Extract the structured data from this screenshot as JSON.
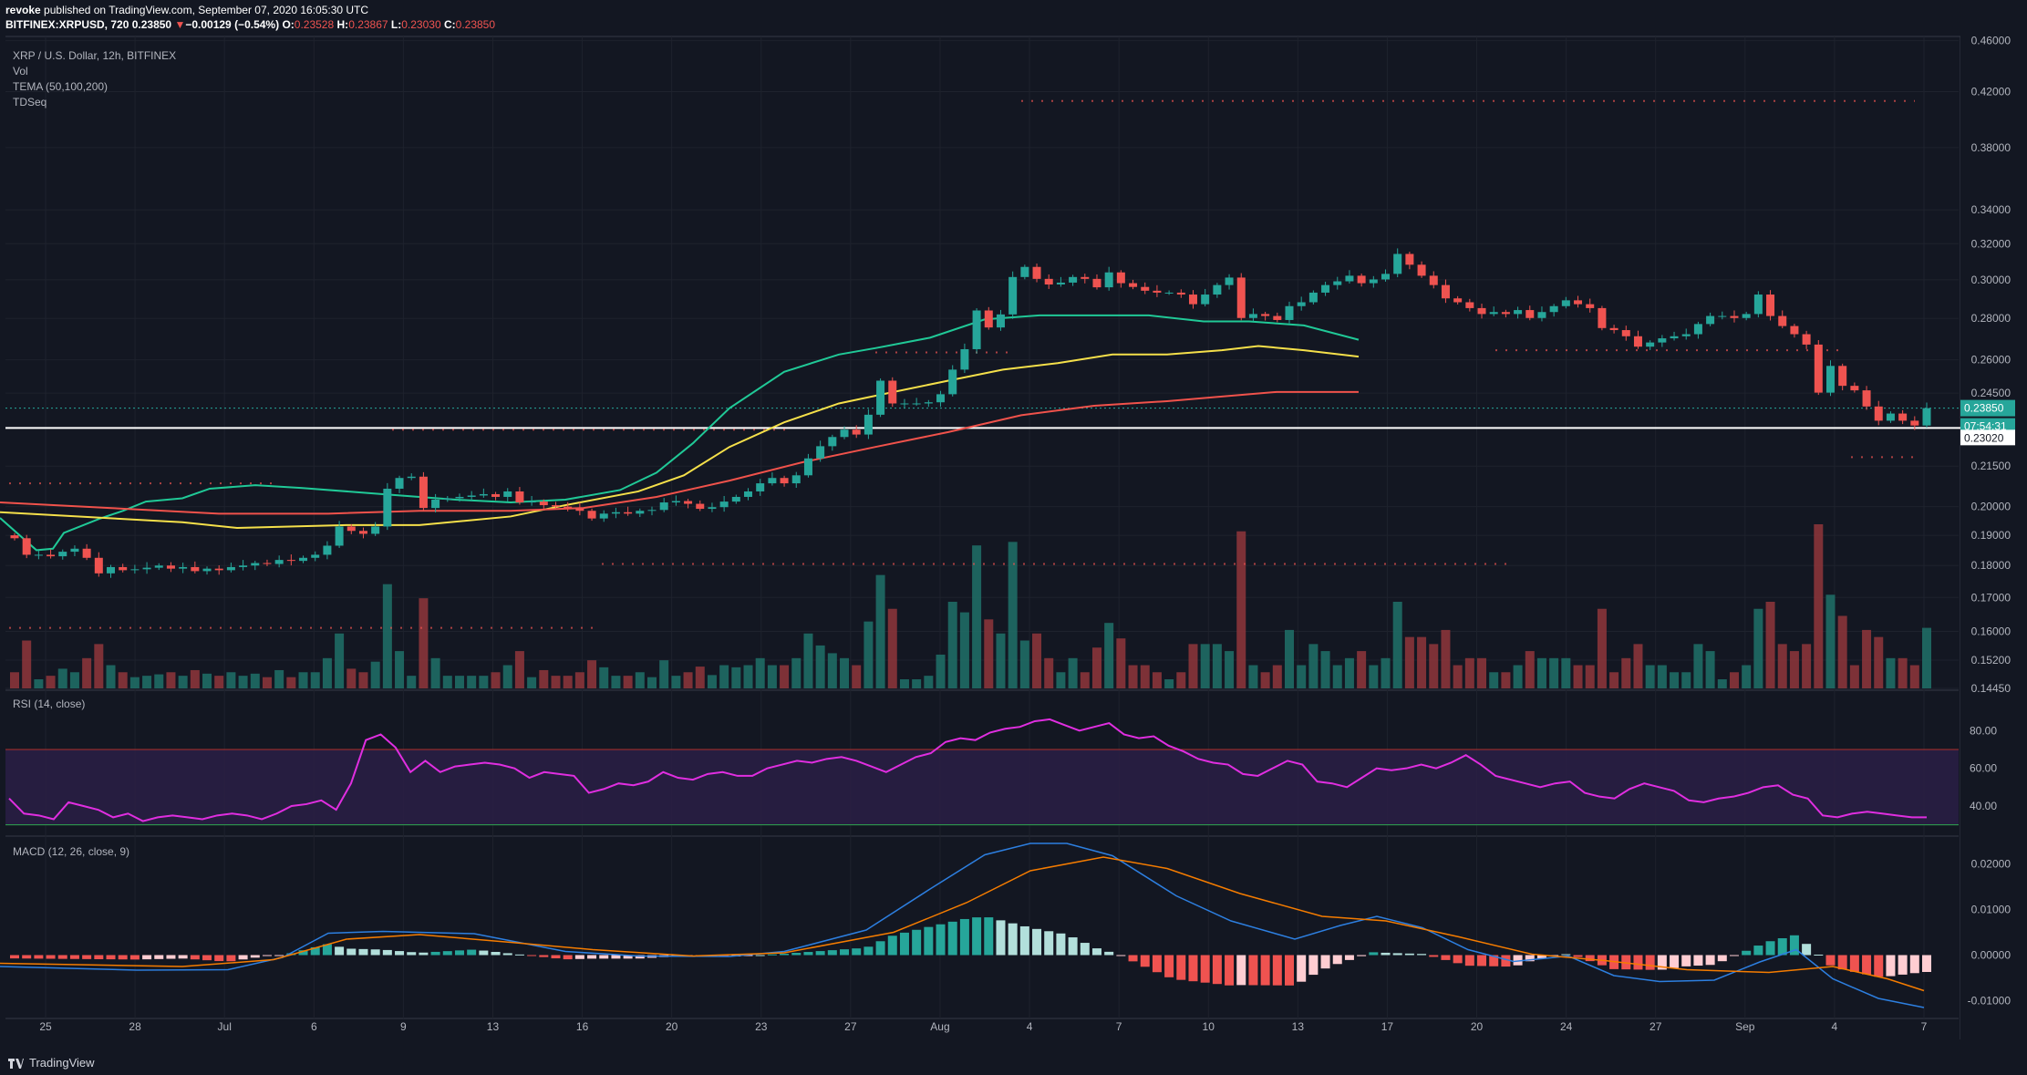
{
  "header": {
    "publisher": "revoke",
    "published_text": "published on TradingView.com, September 07, 2020 16:05:30 UTC",
    "symbol": "BITFINEX:XRPUSD, 720",
    "price": "0.23850",
    "change_arrow": "▼",
    "change": "−0.00129 (−0.54%)",
    "o_label": "O:",
    "o_value": "0.23528",
    "h_label": "H:",
    "h_value": "0.23867",
    "l_label": "L:",
    "l_value": "0.23030",
    "c_label": "C:",
    "c_value": "0.23850"
  },
  "legend": {
    "title": "XRP / U.S. Dollar, 12h, BITFINEX",
    "vol": "Vol",
    "tema": "TEMA (50,100,200)",
    "tdseq": "TDSeq",
    "rsi": "RSI (14, close)",
    "macd": "MACD (12, 26, close, 9)"
  },
  "footer": {
    "brand": "TradingView"
  },
  "colors": {
    "background": "#131722",
    "up": "#26a69a",
    "down": "#ef5350",
    "tema_short": "#20c997",
    "tema_mid": "#f5e04a",
    "tema_long": "#f0524b",
    "rsi_line": "#e02ee0",
    "macd_line": "#2d7fe0",
    "signal_line": "#f57c00"
  },
  "chart_data": [
    {
      "type": "candlestick",
      "pane": "price",
      "symbol": "BITFINEX:XRPUSD",
      "timeframe": "12h",
      "yscale": "log",
      "ylim": [
        0.1445,
        0.462
      ],
      "y_ticks": [
        "0.46000",
        "0.42000",
        "0.38000",
        "0.34000",
        "0.32000",
        "0.30000",
        "0.28000",
        "0.26000",
        "0.24500",
        "0.21500",
        "0.20000",
        "0.19000",
        "0.18000",
        "0.17000",
        "0.16000",
        "0.15200",
        "0.14450"
      ],
      "x_ticks": [
        "25",
        "28",
        "Jul",
        "6",
        "9",
        "13",
        "16",
        "20",
        "23",
        "27",
        "Aug",
        "4",
        "7",
        "10",
        "13",
        "17",
        "20",
        "24",
        "27",
        "Sep",
        "4",
        "7"
      ],
      "price_labels": [
        "0.23850",
        "07:54:31",
        "0.23020"
      ],
      "horizontal_line": 0.2302,
      "close": [
        0.189,
        0.1835,
        0.1835,
        0.183,
        0.1845,
        0.1855,
        0.1825,
        0.1775,
        0.1795,
        0.1785,
        0.1788,
        0.1793,
        0.18,
        0.179,
        0.1795,
        0.1782,
        0.179,
        0.1785,
        0.1795,
        0.18,
        0.1808,
        0.1805,
        0.1818,
        0.1815,
        0.1825,
        0.1835,
        0.1865,
        0.193,
        0.1915,
        0.1905,
        0.193,
        0.2065,
        0.2105,
        0.211,
        0.1995,
        0.2025,
        0.203,
        0.2035,
        0.204,
        0.2045,
        0.2035,
        0.2055,
        0.2015,
        0.2018,
        0.2005,
        0.2,
        0.1995,
        0.1985,
        0.1958,
        0.1975,
        0.198,
        0.1975,
        0.1985,
        0.1988,
        0.2015,
        0.202,
        0.201,
        0.1992,
        0.1998,
        0.2018,
        0.2035,
        0.2055,
        0.2085,
        0.2105,
        0.2085,
        0.2115,
        0.218,
        0.2228,
        0.2265,
        0.2295,
        0.2275,
        0.2357,
        0.2505,
        0.2405,
        0.2405,
        0.2405,
        0.241,
        0.2445,
        0.2555,
        0.265,
        0.284,
        0.2755,
        0.282,
        0.3015,
        0.307,
        0.3005,
        0.2975,
        0.2985,
        0.3015,
        0.3005,
        0.296,
        0.304,
        0.2982,
        0.2962,
        0.2942,
        0.2932,
        0.2932,
        0.2922,
        0.2872,
        0.2922,
        0.2972,
        0.3012,
        0.2802,
        0.2822,
        0.2812,
        0.2792,
        0.2862,
        0.2882,
        0.2932,
        0.2972,
        0.2992,
        0.3022,
        0.2982,
        0.3002,
        0.3032,
        0.3142,
        0.3082,
        0.3022,
        0.2972,
        0.2902,
        0.2882,
        0.2852,
        0.2822,
        0.2832,
        0.2822,
        0.2842,
        0.2802,
        0.2832,
        0.2862,
        0.2892,
        0.2872,
        0.2852,
        0.2752,
        0.2742,
        0.2712,
        0.2662,
        0.2682,
        0.2702,
        0.2712,
        0.2722,
        0.2772,
        0.2812,
        0.2812,
        0.2802,
        0.2822,
        0.2922,
        0.2812,
        0.2762,
        0.2722,
        0.2672,
        0.2452,
        0.2572,
        0.2482,
        0.2462,
        0.2392,
        0.2332,
        0.2362,
        0.2332,
        0.2312,
        0.2385
      ]
    },
    {
      "type": "bar",
      "pane": "volume",
      "name": "Vol"
    },
    {
      "type": "line",
      "pane": "price",
      "name": "TEMA (50,100,200)",
      "series": [
        {
          "color": "#20c997",
          "y": [
            [
              0,
              0.196
            ],
            [
              40,
              0.185
            ],
            [
              58,
              0.1855
            ],
            [
              70,
              0.1908
            ],
            [
              110,
              0.1958
            ],
            [
              135,
              0.1985
            ],
            [
              160,
              0.2018
            ],
            [
              200,
              0.203
            ],
            [
              230,
              0.2065
            ],
            [
              280,
              0.2078
            ],
            [
              330,
              0.2068
            ],
            [
              420,
              0.2045
            ],
            [
              500,
              0.2025
            ],
            [
              560,
              0.2015
            ],
            [
              620,
              0.2025
            ],
            [
              680,
              0.206
            ],
            [
              720,
              0.2125
            ],
            [
              760,
              0.224
            ],
            [
              800,
              0.2385
            ],
            [
              860,
              0.2545
            ],
            [
              920,
              0.2625
            ],
            [
              960,
              0.2655
            ],
            [
              1020,
              0.2705
            ],
            [
              1080,
              0.2795
            ],
            [
              1140,
              0.2815
            ],
            [
              1200,
              0.2815
            ],
            [
              1260,
              0.2815
            ],
            [
              1320,
              0.2785
            ],
            [
              1370,
              0.2785
            ],
            [
              1430,
              0.2765
            ],
            [
              1490,
              0.2695
            ]
          ]
        },
        {
          "color": "#f5e04a",
          "y": [
            [
              0,
              0.198
            ],
            [
              200,
              0.1945
            ],
            [
              260,
              0.1925
            ],
            [
              380,
              0.1935
            ],
            [
              460,
              0.1935
            ],
            [
              560,
              0.1965
            ],
            [
              620,
              0.2005
            ],
            [
              700,
              0.2055
            ],
            [
              750,
              0.2115
            ],
            [
              800,
              0.2225
            ],
            [
              860,
              0.2325
            ],
            [
              920,
              0.2405
            ],
            [
              980,
              0.2455
            ],
            [
              1040,
              0.2505
            ],
            [
              1100,
              0.2555
            ],
            [
              1160,
              0.2585
            ],
            [
              1220,
              0.2625
            ],
            [
              1280,
              0.2625
            ],
            [
              1340,
              0.2645
            ],
            [
              1380,
              0.2665
            ],
            [
              1430,
              0.2645
            ],
            [
              1490,
              0.2615
            ]
          ]
        },
        {
          "color": "#f0524b",
          "y": [
            [
              0,
              0.2015
            ],
            [
              120,
              0.1995
            ],
            [
              240,
              0.1975
            ],
            [
              360,
              0.1975
            ],
            [
              460,
              0.1985
            ],
            [
              560,
              0.1985
            ],
            [
              640,
              0.1995
            ],
            [
              720,
              0.2035
            ],
            [
              800,
              0.2095
            ],
            [
              880,
              0.2165
            ],
            [
              960,
              0.2225
            ],
            [
              1040,
              0.2285
            ],
            [
              1120,
              0.2355
            ],
            [
              1200,
              0.2395
            ],
            [
              1280,
              0.2415
            ],
            [
              1340,
              0.2435
            ],
            [
              1400,
              0.2455
            ],
            [
              1490,
              0.2455
            ]
          ]
        }
      ]
    },
    {
      "type": "line",
      "pane": "rsi",
      "name": "RSI (14, close)",
      "ylim": [
        25,
        100
      ],
      "levels": [
        70,
        30
      ],
      "y_ticks": [
        "80.00",
        "60.00",
        "40.00"
      ],
      "values": [
        44,
        36,
        35,
        33,
        42,
        40,
        38,
        34,
        36,
        32,
        34,
        35,
        34,
        33,
        35,
        36,
        35,
        33,
        36,
        40,
        41,
        43,
        38,
        52,
        75,
        78,
        71,
        58,
        64,
        58,
        61,
        62,
        63,
        62,
        60,
        55,
        58,
        57,
        56,
        47,
        49,
        52,
        51,
        53,
        58,
        55,
        54,
        57,
        58,
        56,
        56,
        60,
        62,
        64,
        63,
        65,
        66,
        64,
        61,
        58,
        62,
        66,
        68,
        74,
        76,
        75,
        79,
        81,
        82,
        85,
        86,
        83,
        80,
        82,
        84,
        78,
        76,
        77,
        72,
        69,
        65,
        63,
        62,
        57,
        56,
        60,
        64,
        62,
        53,
        52,
        50,
        55,
        60,
        59,
        60,
        62,
        60,
        63,
        67,
        62,
        56,
        54,
        52,
        50,
        52,
        53,
        47,
        45,
        44,
        49,
        52,
        50,
        48,
        43,
        42,
        44,
        45,
        47,
        50,
        51,
        46,
        44,
        35,
        34,
        36,
        37,
        36,
        35,
        34,
        34
      ]
    },
    {
      "type": "bar",
      "pane": "macd",
      "name": "MACD (12, 26, close, 9)",
      "ylim": [
        -0.0135,
        0.0255
      ],
      "y_ticks": [
        "0.02000",
        "0.01000",
        "0.00000",
        "-0.01000"
      ],
      "macd_line": [
        [
          0,
          -0.0025
        ],
        [
          150,
          -0.0033
        ],
        [
          250,
          -0.0032
        ],
        [
          310,
          -0.0005
        ],
        [
          360,
          0.0048
        ],
        [
          420,
          0.0052
        ],
        [
          520,
          0.0047
        ],
        [
          620,
          0.0008
        ],
        [
          700,
          -0.0002
        ],
        [
          800,
          -0.0003
        ],
        [
          860,
          0.0008
        ],
        [
          950,
          0.0055
        ],
        [
          1020,
          0.0145
        ],
        [
          1080,
          0.022
        ],
        [
          1130,
          0.0245
        ],
        [
          1170,
          0.0245
        ],
        [
          1220,
          0.0218
        ],
        [
          1290,
          0.013
        ],
        [
          1350,
          0.0075
        ],
        [
          1420,
          0.0035
        ],
        [
          1470,
          0.0065
        ],
        [
          1510,
          0.0085
        ],
        [
          1560,
          0.006
        ],
        [
          1610,
          0.0012
        ],
        [
          1660,
          -0.0014
        ],
        [
          1720,
          -0.0002
        ],
        [
          1770,
          -0.0045
        ],
        [
          1820,
          -0.0058
        ],
        [
          1880,
          -0.0055
        ],
        [
          1930,
          -0.0015
        ],
        [
          1970,
          0.0012
        ],
        [
          2010,
          -0.0052
        ],
        [
          2060,
          -0.0095
        ],
        [
          2110,
          -0.0115
        ]
      ],
      "signal_line": [
        [
          0,
          -0.0018
        ],
        [
          200,
          -0.0025
        ],
        [
          300,
          -0.001
        ],
        [
          380,
          0.0035
        ],
        [
          460,
          0.0045
        ],
        [
          560,
          0.0028
        ],
        [
          650,
          0.0012
        ],
        [
          760,
          -0.0002
        ],
        [
          860,
          0.0005
        ],
        [
          980,
          0.005
        ],
        [
          1060,
          0.0115
        ],
        [
          1130,
          0.0185
        ],
        [
          1210,
          0.0215
        ],
        [
          1280,
          0.019
        ],
        [
          1360,
          0.0135
        ],
        [
          1450,
          0.0085
        ],
        [
          1520,
          0.0075
        ],
        [
          1600,
          0.004
        ],
        [
          1680,
          0.0002
        ],
        [
          1760,
          -0.0012
        ],
        [
          1850,
          -0.0032
        ],
        [
          1940,
          -0.0038
        ],
        [
          2010,
          -0.0025
        ],
        [
          2070,
          -0.0052
        ],
        [
          2110,
          -0.0078
        ]
      ]
    }
  ]
}
